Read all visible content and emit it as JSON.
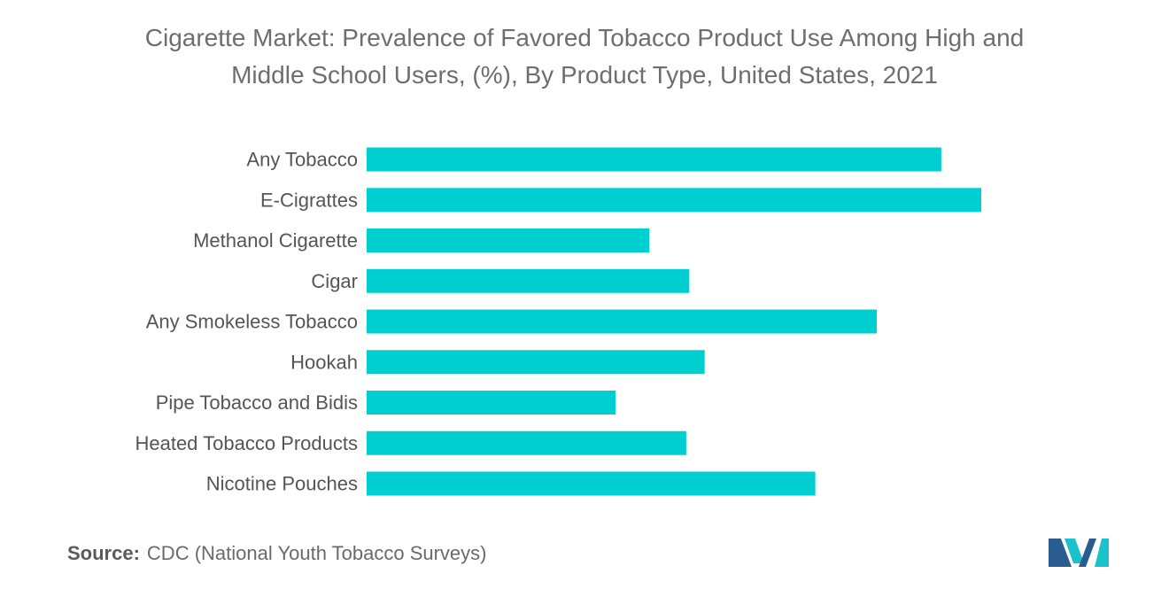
{
  "chart_data": {
    "type": "bar",
    "orientation": "horizontal",
    "title": "Cigarette Market: Prevalence of Favored Tobacco Product Use Among High and Middle School Users, (%), By Product Type, United States, 2021",
    "title_lines": [
      "Cigarette Market: Prevalence of Favored Tobacco Product Use Among High and",
      "Middle School Users, (%), By Product Type, United States, 2021"
    ],
    "categories": [
      "Any Tobacco",
      "E-Cigrattes",
      "Methanol Cigarette",
      "Cigar",
      "Any Smokeless Tobacco",
      "Hookah",
      "Pipe Tobacco and Bidis",
      "Heated Tobacco Products",
      "Nicotine Pouches"
    ],
    "values": [
      93.5,
      100,
      46,
      52.5,
      83,
      55,
      40.5,
      52,
      73
    ],
    "xlim": [
      0,
      100
    ],
    "grid": false,
    "legend": "none",
    "bar_color": "#00CFD1"
  },
  "source": {
    "label": "Source:",
    "text": "CDC (National Youth Tobacco Surveys)"
  },
  "logo": {
    "icon": "mordor-logo-icon",
    "colors": [
      "#2a5d8f",
      "#19c3c9"
    ]
  }
}
